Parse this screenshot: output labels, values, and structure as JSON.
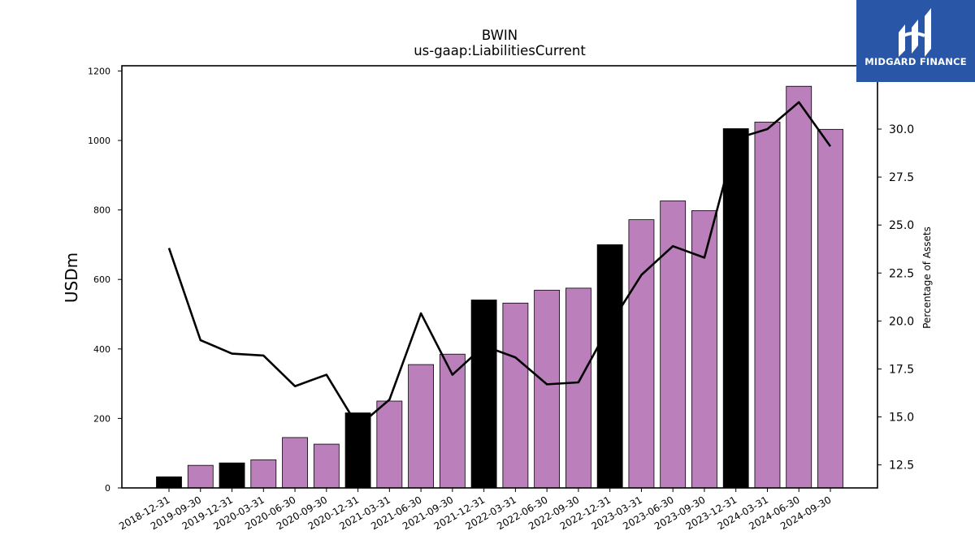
{
  "chart_data": {
    "type": "bar",
    "title": "BWIN",
    "subtitle": "us-gaap:LiabilitiesCurrent",
    "ylabel": "USDm",
    "y2label": "Percentage of Assets",
    "ylim": [
      0,
      1215
    ],
    "y2lim": [
      11.3,
      33.3
    ],
    "yticks": [
      0,
      200,
      400,
      600,
      800,
      1000,
      1200
    ],
    "y2ticks": [
      "12.5",
      "15.0",
      "17.5",
      "20.0",
      "22.5",
      "25.0",
      "27.5",
      "30.0"
    ],
    "categories": [
      "2018-12-31",
      "2019-09-30",
      "2019-12-31",
      "2020-03-31",
      "2020-06-30",
      "2020-09-30",
      "2020-12-31",
      "2021-03-31",
      "2021-06-30",
      "2021-09-30",
      "2021-12-31",
      "2022-03-31",
      "2022-06-30",
      "2022-09-30",
      "2022-12-31",
      "2023-03-31",
      "2023-06-30",
      "2023-09-30",
      "2023-12-31",
      "2024-03-31",
      "2024-06-30",
      "2024-09-30"
    ],
    "values": [
      32,
      65,
      72,
      81,
      145,
      126,
      216,
      250,
      355,
      385,
      541,
      532,
      569,
      575,
      700,
      772,
      826,
      798,
      1034,
      1053,
      1156,
      1032
    ],
    "period_type": [
      "annual",
      "quarter",
      "annual",
      "quarter",
      "quarter",
      "quarter",
      "annual",
      "quarter",
      "quarter",
      "quarter",
      "annual",
      "quarter",
      "quarter",
      "quarter",
      "annual",
      "quarter",
      "quarter",
      "quarter",
      "annual",
      "quarter",
      "quarter",
      "quarter"
    ],
    "line_series": {
      "name": "Percentage of Assets",
      "values": [
        23.8,
        19.0,
        18.3,
        18.2,
        16.6,
        17.2,
        14.5,
        15.9,
        20.4,
        17.2,
        18.7,
        18.1,
        16.7,
        16.8,
        19.8,
        22.4,
        23.9,
        23.3,
        29.5,
        30.0,
        31.4,
        29.1
      ]
    },
    "colors": {
      "annual": "#000000",
      "quarter": "#bb7fbb",
      "line": "#000000"
    },
    "grid": false
  },
  "logo": {
    "text": "MIDGARD FINANCE",
    "color": "#2a56a8"
  }
}
